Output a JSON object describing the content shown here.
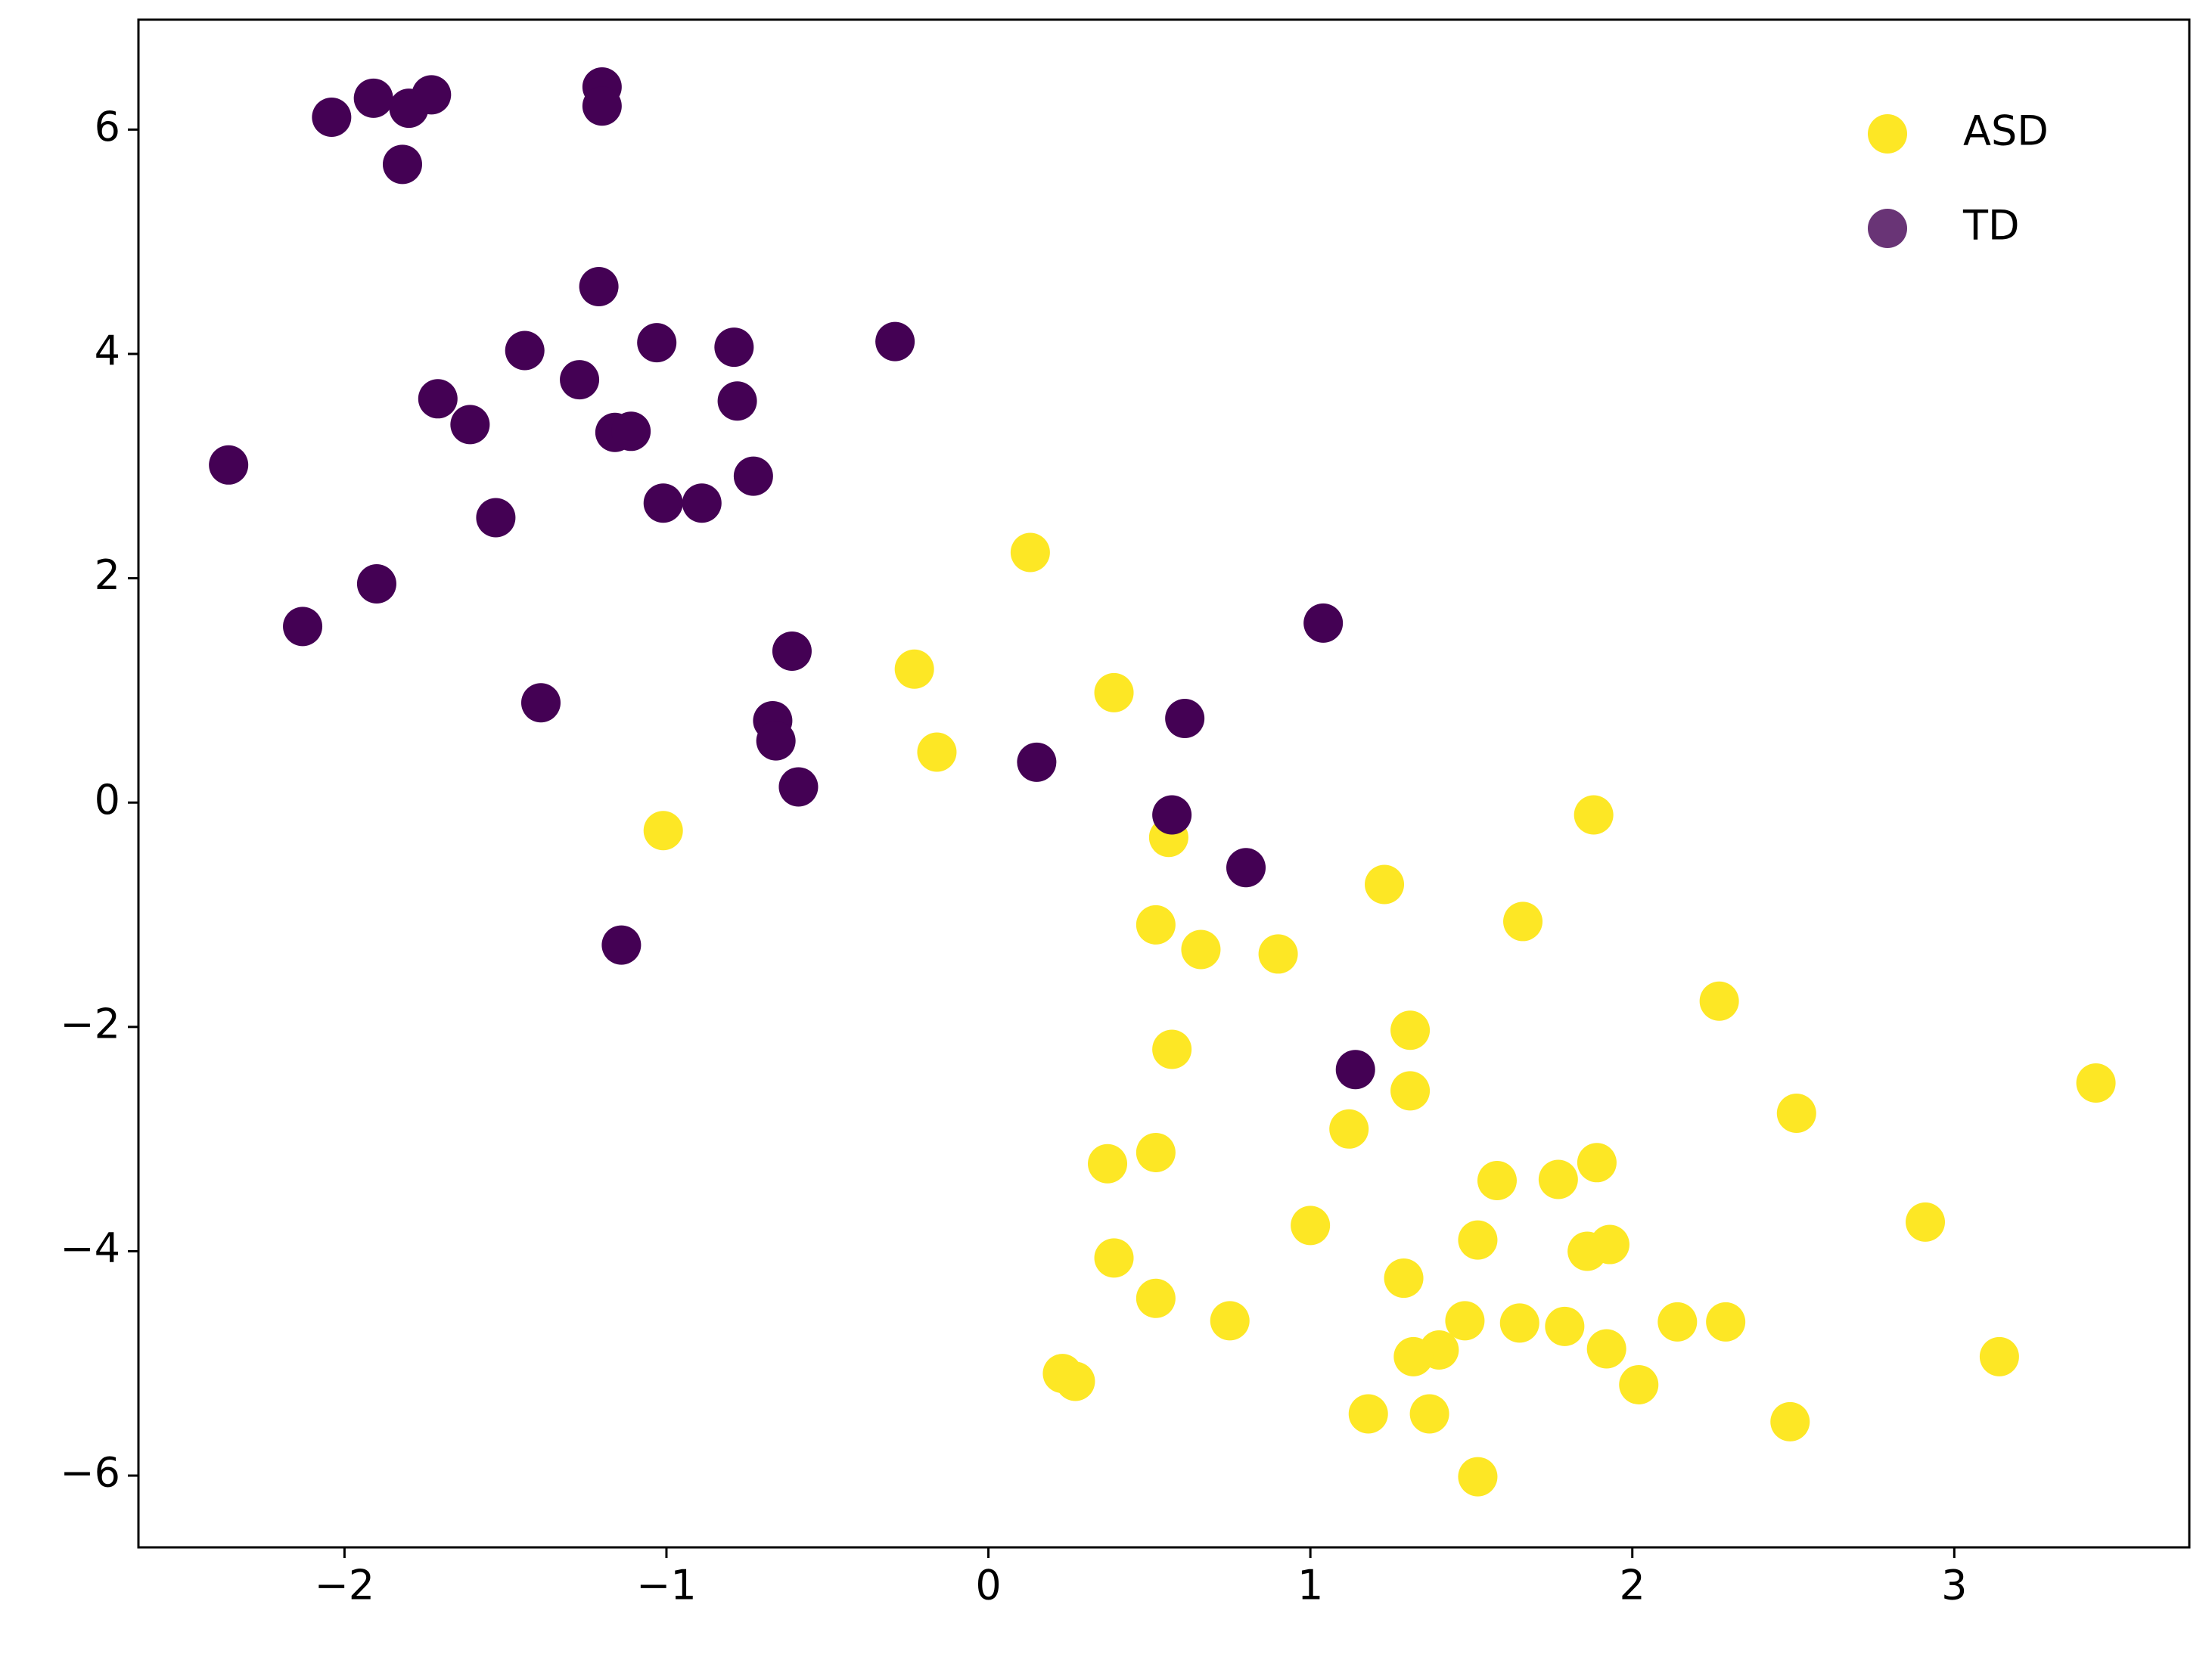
{
  "chart_data": {
    "type": "scatter",
    "xlim": [
      -2.64,
      3.73
    ],
    "ylim": [
      -6.64,
      6.98
    ],
    "xticks": [
      {
        "value": -2,
        "label": "−2"
      },
      {
        "value": -1,
        "label": "−1"
      },
      0,
      1,
      2,
      3
    ],
    "yticks": [
      {
        "value": -6,
        "label": "−6"
      },
      {
        "value": -4,
        "label": "−4"
      },
      {
        "value": -2,
        "label": "−2"
      },
      0,
      2,
      4,
      6
    ],
    "legend": "upper right",
    "series": [
      {
        "name": "ASD",
        "color": "#fde725",
        "x": [
          0.13,
          -0.23,
          -0.16,
          0.39,
          -1.01,
          0.56,
          1.88,
          1.23,
          0.52,
          0.66,
          0.9,
          1.66,
          1.31,
          2.27,
          0.57,
          1.31,
          3.44,
          2.51,
          1.12,
          0.37,
          0.52,
          1.58,
          1.77,
          1.89,
          1.0,
          2.91,
          1.52,
          1.86,
          1.93,
          0.39,
          1.29,
          0.52,
          0.75,
          1.48,
          1.65,
          1.79,
          2.14,
          2.29,
          1.4,
          1.32,
          1.92,
          3.14,
          0.23,
          0.27,
          2.02,
          1.18,
          1.37,
          2.49,
          1.52
        ],
        "values": [
          2.23,
          1.19,
          0.45,
          0.98,
          -0.25,
          -0.31,
          -0.11,
          -0.73,
          -1.09,
          -1.31,
          -1.35,
          -1.06,
          -2.03,
          -1.77,
          -2.2,
          -2.57,
          -2.5,
          -2.77,
          -2.91,
          -3.22,
          -3.12,
          -3.37,
          -3.36,
          -3.21,
          -3.77,
          -3.74,
          -3.9,
          -4.0,
          -3.94,
          -4.06,
          -4.24,
          -4.42,
          -4.62,
          -4.62,
          -4.64,
          -4.67,
          -4.63,
          -4.63,
          -4.88,
          -4.94,
          -4.87,
          -4.94,
          -5.09,
          -5.16,
          -5.19,
          -5.45,
          -5.45,
          -5.52,
          -6.01
        ]
      },
      {
        "name": "TD",
        "color": "#440154",
        "x": [
          -2.04,
          -1.91,
          -1.8,
          -1.73,
          -1.82,
          -1.2,
          -1.2,
          -1.21,
          -1.44,
          -1.03,
          -0.79,
          -0.29,
          -1.27,
          -1.71,
          -1.61,
          -0.78,
          -1.16,
          -1.11,
          -0.73,
          -2.36,
          -1.53,
          -1.01,
          -0.89,
          -1.9,
          -2.13,
          -1.39,
          -0.61,
          -0.67,
          -0.66,
          -0.59,
          0.15,
          1.04,
          0.61,
          0.57,
          0.8,
          -1.14,
          1.14
        ],
        "values": [
          6.11,
          6.28,
          6.19,
          6.31,
          5.69,
          6.38,
          6.21,
          4.6,
          4.03,
          4.1,
          4.06,
          4.11,
          3.77,
          3.6,
          3.37,
          3.58,
          3.3,
          3.31,
          2.91,
          3.01,
          2.54,
          2.67,
          2.67,
          1.95,
          1.57,
          0.89,
          1.35,
          0.73,
          0.55,
          0.14,
          0.36,
          1.6,
          0.75,
          -0.11,
          -0.58,
          -1.27,
          -2.38
        ]
      }
    ]
  }
}
